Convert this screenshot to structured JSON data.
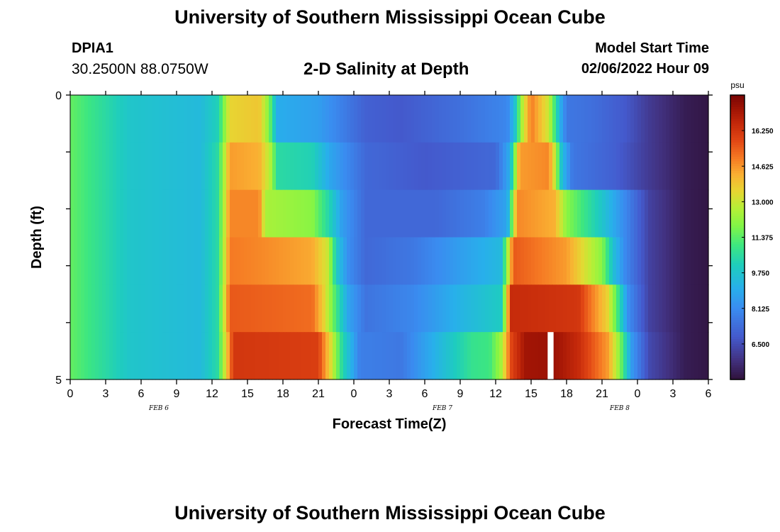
{
  "header": {
    "title": "University of Southern Mississippi Ocean Cube",
    "station_id": "DPIA1",
    "station_coords": "30.2500N  88.0750W",
    "subtitle": "2-D Salinity at Depth",
    "model_start_label": "Model Start Time",
    "model_start_value": "02/06/2022 Hour 09"
  },
  "footer": {
    "title": "University of Southern Mississippi Ocean Cube"
  },
  "chart_data": {
    "type": "heatmap",
    "xlabel": "Forecast Time(Z)",
    "ylabel": "Depth (ft)",
    "x_tick_labels": [
      "0",
      "3",
      "6",
      "9",
      "12",
      "15",
      "18",
      "21",
      "0",
      "3",
      "6",
      "9",
      "12",
      "15",
      "18",
      "21",
      "0",
      "3",
      "6"
    ],
    "date_labels": [
      {
        "label": "FEB 6",
        "tick_index": 2.5
      },
      {
        "label": "FEB 7",
        "tick_index": 10.5
      },
      {
        "label": "FEB 8",
        "tick_index": 15.5
      }
    ],
    "x_range_hours": [
      0,
      54
    ],
    "y_tick_labels": [
      "0",
      "5"
    ],
    "y_range_ft": [
      0,
      5
    ],
    "depth_rows": 6,
    "colorbar": {
      "unit": "psu",
      "ticks": [
        "16.250",
        "14.625",
        "13.000",
        "11.375",
        "9.750",
        "8.125",
        "6.500"
      ],
      "tick_values": [
        16.25,
        14.625,
        13.0,
        11.375,
        9.75,
        8.125,
        6.5
      ],
      "range": [
        4.875,
        17.875
      ]
    },
    "salinity_rows": [
      {
        "depth_band": 0,
        "keyframes": [
          {
            "t": 0,
            "v": 11.5
          },
          {
            "t": 5,
            "v": 9.8
          },
          {
            "t": 11,
            "v": 9.4
          },
          {
            "t": 12.5,
            "v": 10.2
          },
          {
            "t": 13.5,
            "v": 13.5
          },
          {
            "t": 16,
            "v": 13.8
          },
          {
            "t": 16.8,
            "v": 12.0
          },
          {
            "t": 17.5,
            "v": 9.0
          },
          {
            "t": 21,
            "v": 8.6
          },
          {
            "t": 23,
            "v": 7.8
          },
          {
            "t": 25,
            "v": 7.0
          },
          {
            "t": 28,
            "v": 6.8
          },
          {
            "t": 33,
            "v": 7.4
          },
          {
            "t": 37,
            "v": 8.0
          },
          {
            "t": 37.6,
            "v": 9.5
          },
          {
            "t": 38.2,
            "v": 12.5
          },
          {
            "t": 39,
            "v": 15.0
          },
          {
            "t": 40.5,
            "v": 13.0
          },
          {
            "t": 41,
            "v": 11.0
          },
          {
            "t": 41.5,
            "v": 9.0
          },
          {
            "t": 42,
            "v": 7.6
          },
          {
            "t": 44,
            "v": 7.4
          },
          {
            "t": 47,
            "v": 6.8
          },
          {
            "t": 49,
            "v": 6.0
          },
          {
            "t": 52,
            "v": 5.2
          },
          {
            "t": 54,
            "v": 5.0
          }
        ]
      },
      {
        "depth_band": 1,
        "keyframes": [
          {
            "t": 0,
            "v": 11.5
          },
          {
            "t": 5,
            "v": 9.8
          },
          {
            "t": 11,
            "v": 9.4
          },
          {
            "t": 12.5,
            "v": 10.5
          },
          {
            "t": 13.5,
            "v": 14.5
          },
          {
            "t": 16,
            "v": 14.2
          },
          {
            "t": 17,
            "v": 12.5
          },
          {
            "t": 17.5,
            "v": 10.5
          },
          {
            "t": 20.5,
            "v": 10.2
          },
          {
            "t": 22,
            "v": 8.8
          },
          {
            "t": 25,
            "v": 7.2
          },
          {
            "t": 30,
            "v": 6.8
          },
          {
            "t": 36,
            "v": 7.2
          },
          {
            "t": 37.2,
            "v": 9.0
          },
          {
            "t": 38,
            "v": 14.5
          },
          {
            "t": 40.5,
            "v": 14.8
          },
          {
            "t": 41,
            "v": 13.0
          },
          {
            "t": 41.6,
            "v": 9.5
          },
          {
            "t": 42.5,
            "v": 7.6
          },
          {
            "t": 46,
            "v": 7.0
          },
          {
            "t": 49,
            "v": 6.0
          },
          {
            "t": 52,
            "v": 5.2
          },
          {
            "t": 54,
            "v": 5.0
          }
        ]
      },
      {
        "depth_band": 2,
        "keyframes": [
          {
            "t": 0,
            "v": 11.5
          },
          {
            "t": 5,
            "v": 9.8
          },
          {
            "t": 11,
            "v": 9.4
          },
          {
            "t": 12.5,
            "v": 10.5
          },
          {
            "t": 13.5,
            "v": 14.8
          },
          {
            "t": 16,
            "v": 14.8
          },
          {
            "t": 16.5,
            "v": 12.5
          },
          {
            "t": 20.5,
            "v": 12.0
          },
          {
            "t": 22,
            "v": 10.2
          },
          {
            "t": 23,
            "v": 8.6
          },
          {
            "t": 25,
            "v": 7.2
          },
          {
            "t": 31,
            "v": 7.2
          },
          {
            "t": 35,
            "v": 7.8
          },
          {
            "t": 37,
            "v": 8.8
          },
          {
            "t": 37.8,
            "v": 14.8
          },
          {
            "t": 41,
            "v": 14.2
          },
          {
            "t": 42,
            "v": 12.0
          },
          {
            "t": 45,
            "v": 9.8
          },
          {
            "t": 47,
            "v": 8.0
          },
          {
            "t": 49,
            "v": 6.2
          },
          {
            "t": 52,
            "v": 5.2
          },
          {
            "t": 54,
            "v": 5.0
          }
        ]
      },
      {
        "depth_band": 3,
        "keyframes": [
          {
            "t": 0,
            "v": 11.5
          },
          {
            "t": 5,
            "v": 9.8
          },
          {
            "t": 11,
            "v": 9.4
          },
          {
            "t": 12.5,
            "v": 10.5
          },
          {
            "t": 13.5,
            "v": 15.0
          },
          {
            "t": 16,
            "v": 14.8
          },
          {
            "t": 20.5,
            "v": 14.3
          },
          {
            "t": 21.8,
            "v": 13.0
          },
          {
            "t": 22.5,
            "v": 10.0
          },
          {
            "t": 23.5,
            "v": 8.2
          },
          {
            "t": 25,
            "v": 7.2
          },
          {
            "t": 29,
            "v": 7.6
          },
          {
            "t": 33,
            "v": 8.6
          },
          {
            "t": 36.5,
            "v": 9.4
          },
          {
            "t": 37.5,
            "v": 15.5
          },
          {
            "t": 42,
            "v": 14.5
          },
          {
            "t": 45,
            "v": 12.0
          },
          {
            "t": 46,
            "v": 9.5
          },
          {
            "t": 47,
            "v": 8.0
          },
          {
            "t": 49,
            "v": 6.2
          },
          {
            "t": 52,
            "v": 5.2
          },
          {
            "t": 54,
            "v": 5.0
          }
        ]
      },
      {
        "depth_band": 4,
        "keyframes": [
          {
            "t": 0,
            "v": 11.5
          },
          {
            "t": 5,
            "v": 9.8
          },
          {
            "t": 11,
            "v": 9.4
          },
          {
            "t": 12.5,
            "v": 10.5
          },
          {
            "t": 13.5,
            "v": 15.5
          },
          {
            "t": 20.5,
            "v": 15.2
          },
          {
            "t": 21.5,
            "v": 13.5
          },
          {
            "t": 22.5,
            "v": 11.0
          },
          {
            "t": 23.5,
            "v": 8.8
          },
          {
            "t": 25,
            "v": 7.5
          },
          {
            "t": 29,
            "v": 8.0
          },
          {
            "t": 33,
            "v": 9.2
          },
          {
            "t": 36.5,
            "v": 10.0
          },
          {
            "t": 37.3,
            "v": 16.5
          },
          {
            "t": 43,
            "v": 16.2
          },
          {
            "t": 45.5,
            "v": 13.5
          },
          {
            "t": 46.5,
            "v": 10.5
          },
          {
            "t": 47.2,
            "v": 8.2
          },
          {
            "t": 49,
            "v": 6.2
          },
          {
            "t": 52,
            "v": 5.2
          },
          {
            "t": 54,
            "v": 5.0
          }
        ]
      },
      {
        "depth_band": 5,
        "keyframes": [
          {
            "t": 0,
            "v": 11.5
          },
          {
            "t": 5,
            "v": 9.8
          },
          {
            "t": 11,
            "v": 9.4
          },
          {
            "t": 12.5,
            "v": 10.5
          },
          {
            "t": 13.8,
            "v": 16.2
          },
          {
            "t": 21,
            "v": 16.0
          },
          {
            "t": 22,
            "v": 13.5
          },
          {
            "t": 23,
            "v": 10.5
          },
          {
            "t": 24.5,
            "v": 7.8
          },
          {
            "t": 28,
            "v": 7.6
          },
          {
            "t": 31,
            "v": 9.2
          },
          {
            "t": 34,
            "v": 10.8
          },
          {
            "t": 35.5,
            "v": 11.0
          },
          {
            "t": 36.5,
            "v": 12.5
          },
          {
            "t": 37.3,
            "v": 15.8
          },
          {
            "t": 38.5,
            "v": 17.2
          },
          {
            "t": 41,
            "v": 17.3
          },
          {
            "t": 43,
            "v": 16.5
          },
          {
            "t": 45.5,
            "v": 14.5
          },
          {
            "t": 46.5,
            "v": 12.0
          },
          {
            "t": 47.5,
            "v": 8.5
          },
          {
            "t": 49,
            "v": 6.4
          },
          {
            "t": 52,
            "v": 5.2
          },
          {
            "t": 54,
            "v": 5.0
          }
        ]
      }
    ],
    "no_data_gap": {
      "depth_band": 5,
      "t_start": 40.4,
      "t_end": 40.9
    }
  }
}
